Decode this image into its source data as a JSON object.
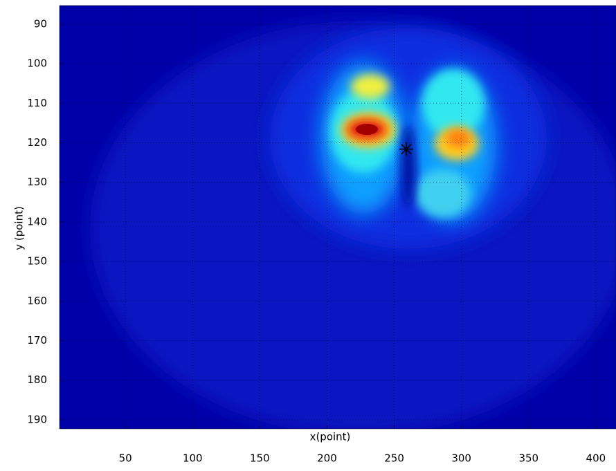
{
  "chart_data": {
    "type": "heatmap",
    "xlabel": "x(point)",
    "ylabel": "y (point)",
    "xlim": [
      1,
      415
    ],
    "xticks": [
      50,
      100,
      150,
      200,
      250,
      300,
      350,
      400
    ],
    "ylim": [
      85.3,
      192.3
    ],
    "y_reversed": true,
    "yticks": [
      90,
      100,
      110,
      120,
      130,
      140,
      150,
      160,
      170,
      180,
      190
    ],
    "grid": true,
    "colormap": "jet",
    "marker": {
      "x": 259,
      "y": 121.6,
      "color": "#000000"
    }
  }
}
